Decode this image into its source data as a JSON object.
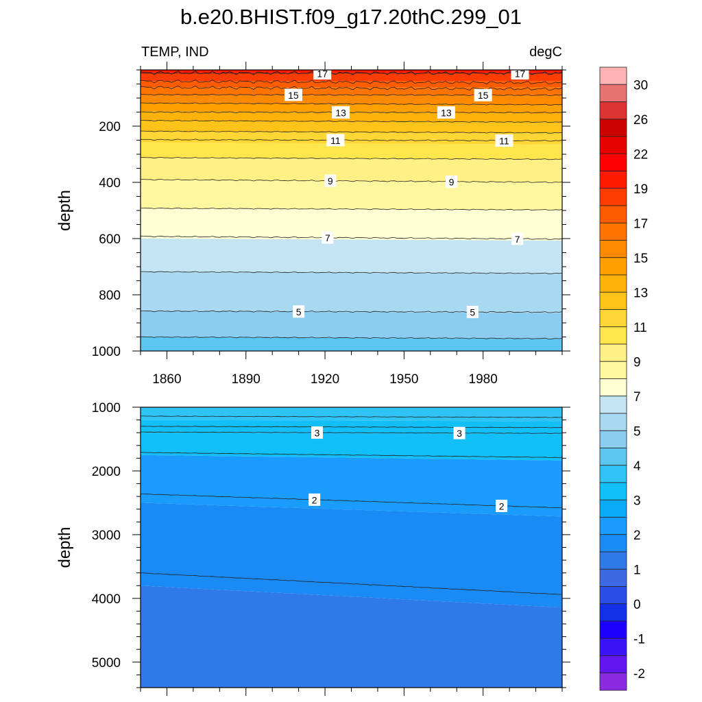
{
  "title": "b.e20.BHIST.f09_g17.20thC.299_01",
  "chart_data": {
    "type": "heatmap",
    "variable_label": "TEMP, IND",
    "units_label": "degC",
    "x_range": [
      1850,
      2010
    ],
    "x_ticks": [
      1860,
      1890,
      1920,
      1950,
      1980
    ],
    "colorbar": {
      "colors": [
        "#8a2be2",
        "#6316f0",
        "#3a14f5",
        "#1e00ff",
        "#1230e6",
        "#2a4de8",
        "#3d69e3",
        "#2f7ae8",
        "#1a8bf5",
        "#1a9cff",
        "#0aaaf8",
        "#12bff8",
        "#2fc4f5",
        "#5cc6f2",
        "#8cccf0",
        "#a8d9f1",
        "#c2e4f3",
        "#ffffd4",
        "#fff7a0",
        "#fff085",
        "#ffe64d",
        "#ffd633",
        "#ffc31a",
        "#ffb30a",
        "#ff9f00",
        "#ff8a00",
        "#ff7300",
        "#ff5c00",
        "#ff3d00",
        "#ff1a00",
        "#ff0000",
        "#e60000",
        "#cc0000",
        "#dd3333",
        "#e87272",
        "#ffb3b3"
      ],
      "labels": [
        "-2",
        "-1",
        "0",
        "1",
        "2",
        "3",
        "4",
        "5",
        "7",
        "9",
        "11",
        "13",
        "15",
        "17",
        "19",
        "22",
        "26",
        "30"
      ]
    },
    "panels": [
      {
        "name": "upper",
        "ylabel": "depth",
        "y_range": [
          0,
          1000
        ],
        "y_ticks": [
          200,
          400,
          600,
          800,
          1000
        ],
        "bands": [
          {
            "top": 0,
            "bottom": 12,
            "value": 19
          },
          {
            "top": 12,
            "bottom": 40,
            "value": 18
          },
          {
            "top": 40,
            "bottom": 62,
            "value": 17
          },
          {
            "top": 62,
            "bottom": 90,
            "value": 16
          },
          {
            "top": 90,
            "bottom": 118,
            "value": 15
          },
          {
            "top": 118,
            "bottom": 148,
            "value": 14
          },
          {
            "top": 148,
            "bottom": 180,
            "value": 13
          },
          {
            "top": 180,
            "bottom": 218,
            "value": 12
          },
          {
            "top": 218,
            "bottom": 258,
            "value": 11
          },
          {
            "top": 258,
            "bottom": 312,
            "value": 10
          },
          {
            "top": 312,
            "bottom": 392,
            "value": 9
          },
          {
            "top": 392,
            "bottom": 492,
            "value": 8
          },
          {
            "top": 492,
            "bottom": 600,
            "value": 7
          },
          {
            "top": 600,
            "bottom": 718,
            "value": 6
          },
          {
            "top": 718,
            "bottom": 858,
            "value": 5
          },
          {
            "top": 858,
            "bottom": 950,
            "value": 4.5
          },
          {
            "top": 950,
            "bottom": 1000,
            "value": 4
          }
        ],
        "contours": [
          {
            "value": 17,
            "start": 12,
            "end": 12,
            "label_at": [
              1919,
              1994
            ]
          },
          {
            "value": 15,
            "start": 88,
            "end": 90,
            "label_at": [
              1908,
              1980
            ]
          },
          {
            "value": 13,
            "start": 150,
            "end": 152,
            "label_at": [
              1926,
              1966
            ]
          },
          {
            "value": 11,
            "start": 248,
            "end": 252,
            "label_at": [
              1924,
              1988
            ]
          },
          {
            "value": 9,
            "start": 390,
            "end": 400,
            "label_at": [
              1922,
              1968
            ]
          },
          {
            "value": 7,
            "start": 592,
            "end": 602,
            "label_at": [
              1921,
              1993
            ]
          },
          {
            "value": 5,
            "start": 858,
            "end": 862,
            "label_at": [
              1910,
              1976
            ]
          }
        ],
        "lines_only": [
          40,
          62,
          118,
          180,
          218,
          312,
          492,
          718,
          950
        ]
      },
      {
        "name": "lower",
        "ylabel": "depth",
        "y_range": [
          1000,
          5400
        ],
        "y_ticks": [
          1000,
          2000,
          3000,
          4000,
          5000
        ],
        "bands": [
          {
            "top": 1000,
            "bottom": 1200,
            "value": 3.8
          },
          {
            "top": 1200,
            "bottom": 1400,
            "value": 3.4
          },
          {
            "top": 1400,
            "bottom": 1750,
            "value": 3
          },
          {
            "top": 1750,
            "bottom": 2500,
            "value": 2
          },
          {
            "top": 2500,
            "bottom": 3800,
            "value": 1.7
          },
          {
            "top": 3800,
            "bottom": 5400,
            "value": 1.3
          }
        ],
        "contours": [
          {
            "value": 3,
            "start": 1390,
            "end": 1410,
            "label_at": [
              1917,
              1971
            ]
          },
          {
            "value": 2,
            "start": 2360,
            "end": 2580,
            "label_at": [
              1916,
              1987
            ]
          }
        ],
        "boundaries": [
          {
            "start": 1140,
            "end": 1160
          },
          {
            "start": 1300,
            "end": 1320
          },
          {
            "start": 1710,
            "end": 1790
          },
          {
            "start": 3600,
            "end": 3940
          }
        ]
      }
    ]
  }
}
